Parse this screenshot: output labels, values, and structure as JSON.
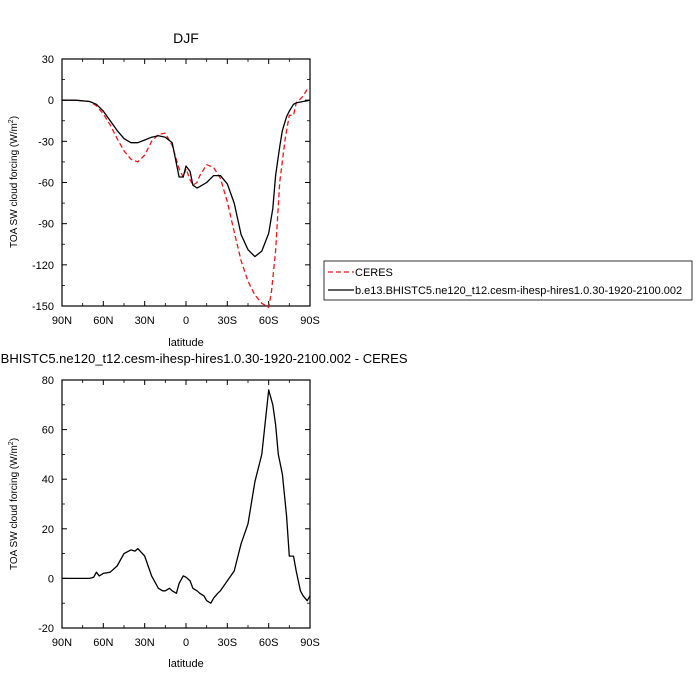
{
  "chart_data": [
    {
      "type": "line",
      "title": "DJF",
      "xlabel": "latitude",
      "ylabel": "TOA SW cloud forcing (W/m",
      "ylabel_sup": "2",
      "ylabel_close": ")",
      "xlim": [
        90,
        -90
      ],
      "ylim": [
        -150,
        30
      ],
      "xticks": [
        90,
        60,
        30,
        0,
        -30,
        -60,
        -90
      ],
      "xtick_labels": [
        "90N",
        "60N",
        "30N",
        "0",
        "30S",
        "60S",
        "90S"
      ],
      "yticks": [
        30,
        0,
        -30,
        -60,
        -90,
        -120,
        -150
      ],
      "ytick_labels": [
        "30",
        "0",
        "-30",
        "-60",
        "-90",
        "-120",
        "-150"
      ],
      "legend_position": "right",
      "series": [
        {
          "name": "CERES",
          "color": "#e8171b",
          "dash": "dashed",
          "x": [
            90,
            80,
            70,
            65,
            60,
            55,
            50,
            45,
            40,
            35,
            30,
            25,
            20,
            15,
            10,
            5,
            2,
            0,
            -3,
            -5,
            -8,
            -10,
            -15,
            -20,
            -25,
            -30,
            -35,
            -40,
            -45,
            -50,
            -55,
            -60,
            -62,
            -65,
            -68,
            -72,
            -75,
            -78,
            -80,
            -85,
            -88,
            -90
          ],
          "y": [
            0,
            0,
            -1,
            -4,
            -10,
            -18,
            -28,
            -37,
            -43,
            -45,
            -40,
            -30,
            -25,
            -24,
            -33,
            -50,
            -56,
            -50,
            -58,
            -62,
            -60,
            -55,
            -47,
            -49,
            -57,
            -74,
            -96,
            -117,
            -132,
            -142,
            -148,
            -151,
            -140,
            -110,
            -60,
            -28,
            -11,
            -11,
            -2,
            3,
            8,
            7
          ]
        },
        {
          "name": "b.e13.BHISTC5.ne120_t12.cesm-ihesp-hires1.0.30-1920-2100.002",
          "color": "#000000",
          "dash": "solid",
          "x": [
            90,
            80,
            70,
            65,
            60,
            55,
            50,
            45,
            40,
            35,
            30,
            25,
            20,
            15,
            10,
            5,
            2,
            0,
            -3,
            -5,
            -8,
            -10,
            -15,
            -20,
            -25,
            -30,
            -35,
            -40,
            -45,
            -50,
            -55,
            -60,
            -63,
            -65,
            -68,
            -70,
            -73,
            -75,
            -78,
            -80,
            -85,
            -90
          ],
          "y": [
            0,
            0,
            -1,
            -3,
            -8,
            -15,
            -22,
            -28,
            -31,
            -31,
            -29,
            -27,
            -26,
            -27,
            -31,
            -56,
            -56,
            -48,
            -52,
            -62,
            -64,
            -63,
            -60,
            -55,
            -55,
            -61,
            -75,
            -98,
            -109,
            -114,
            -110,
            -97,
            -79,
            -55,
            -34,
            -22,
            -12,
            -8,
            -3,
            -2,
            -1,
            0
          ]
        }
      ]
    },
    {
      "type": "line",
      "title": "b.e13.BHISTC5.ne120_t12.cesm-ihesp-hires1.0.30-1920-2100.002 - CERES",
      "xlabel": "latitude",
      "ylabel": "TOA SW cloud forcing (W/m",
      "ylabel_sup": "2",
      "ylabel_close": ")",
      "xlim": [
        90,
        -90
      ],
      "ylim": [
        -20,
        80
      ],
      "xticks": [
        90,
        60,
        30,
        0,
        -30,
        -60,
        -90
      ],
      "xtick_labels": [
        "90N",
        "60N",
        "30N",
        "0",
        "30S",
        "60S",
        "90S"
      ],
      "yticks": [
        80,
        60,
        40,
        20,
        0,
        -20
      ],
      "ytick_labels": [
        "80",
        "60",
        "40",
        "20",
        "0",
        "-20"
      ],
      "series": [
        {
          "color": "#000000",
          "dash": "solid",
          "x": [
            90,
            80,
            70,
            67,
            65,
            63,
            60,
            55,
            50,
            45,
            40,
            37,
            35,
            30,
            25,
            20,
            17,
            15,
            12,
            10,
            7,
            5,
            2,
            0,
            -3,
            -5,
            -8,
            -10,
            -13,
            -15,
            -18,
            -20,
            -23,
            -25,
            -30,
            -35,
            -40,
            -45,
            -50,
            -55,
            -60,
            -63,
            -65,
            -67,
            -70,
            -73,
            -75,
            -78,
            -80,
            -83,
            -85,
            -88,
            -90
          ],
          "y": [
            0,
            0,
            0,
            0.5,
            2.5,
            1,
            2,
            2.5,
            5,
            10,
            11.5,
            11,
            12,
            9,
            1,
            -4,
            -5,
            -5,
            -4,
            -5,
            -6,
            -2,
            1,
            0.5,
            -1,
            -4,
            -5,
            -6,
            -7,
            -9,
            -10,
            -8,
            -6,
            -5,
            -1,
            3,
            14,
            22,
            39,
            50,
            76,
            70,
            62,
            50,
            42,
            25,
            9,
            9,
            3,
            -5,
            -7,
            -9,
            -7
          ]
        }
      ]
    }
  ]
}
